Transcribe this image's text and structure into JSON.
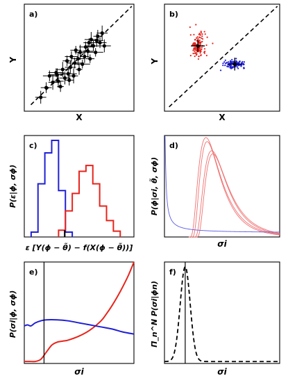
{
  "colors": {
    "red": "#e8231b",
    "blue": "#1f1fd6",
    "black": "#000000",
    "red_thin": "#f07070",
    "blue_thin": "#5a5ae6"
  },
  "chart_data": [
    {
      "panel": "a)",
      "type": "scatter",
      "xlabel": "X",
      "ylabel": "Y",
      "xlim": [
        0,
        10
      ],
      "ylim": [
        0,
        10
      ],
      "identity_line": true,
      "points": [
        [
          1.5,
          1.3
        ],
        [
          2.3,
          3.3
        ],
        [
          2.6,
          2.7
        ],
        [
          2.9,
          3.6
        ],
        [
          3.1,
          2.8
        ],
        [
          3.3,
          2.3
        ],
        [
          3.5,
          3.9
        ],
        [
          3.7,
          3.1
        ],
        [
          3.9,
          4.7
        ],
        [
          4.0,
          3.5
        ],
        [
          4.2,
          4.1
        ],
        [
          4.3,
          5.1
        ],
        [
          4.5,
          3.3
        ],
        [
          4.6,
          4.5
        ],
        [
          4.7,
          5.7
        ],
        [
          4.9,
          4.9
        ],
        [
          5.0,
          3.9
        ],
        [
          5.1,
          5.5
        ],
        [
          5.3,
          4.4
        ],
        [
          5.5,
          5.1
        ],
        [
          5.6,
          6.0
        ],
        [
          5.8,
          5.6
        ],
        [
          6.0,
          4.9
        ],
        [
          6.1,
          6.7
        ],
        [
          6.3,
          6.1
        ],
        [
          6.5,
          5.5
        ],
        [
          6.7,
          7.0
        ],
        [
          6.9,
          6.4
        ],
        [
          7.1,
          7.3
        ],
        [
          7.3,
          6.1
        ],
        [
          2.0,
          2.2
        ],
        [
          3.0,
          3.4
        ],
        [
          4.1,
          2.9
        ],
        [
          5.9,
          6.4
        ],
        [
          6.6,
          6.6
        ]
      ],
      "xerr": [
        0.5,
        0.6,
        0.4,
        0.7,
        0.5,
        0.3,
        0.6,
        0.5,
        0.4,
        0.8,
        0.5,
        0.6,
        0.4,
        0.7,
        0.5,
        0.6,
        0.3,
        0.5,
        0.7,
        0.4,
        0.6,
        0.5,
        0.4,
        0.6,
        0.5,
        0.7,
        0.4,
        0.6,
        0.5,
        0.6,
        0.5,
        0.6,
        0.4,
        0.5,
        0.6
      ],
      "yerr": [
        0.6,
        0.5,
        0.7,
        0.4,
        0.6,
        0.5,
        0.7,
        0.6,
        0.5,
        0.4,
        0.6,
        0.5,
        0.7,
        0.5,
        0.4,
        0.6,
        0.5,
        0.7,
        0.4,
        0.6,
        0.5,
        0.6,
        0.4,
        0.7,
        0.5,
        0.4,
        0.6,
        0.5,
        0.7,
        0.6,
        0.5,
        0.6,
        0.5,
        0.4,
        0.6
      ]
    },
    {
      "panel": "b)",
      "type": "scatter",
      "xlabel": "X",
      "ylabel": "Y",
      "xlim": [
        0,
        10
      ],
      "ylim": [
        0,
        10
      ],
      "identity_line": true,
      "clusters": [
        {
          "color": "red",
          "center": [
            2.9,
            6.1
          ],
          "spread": [
            0.55,
            1.0
          ],
          "count": 130
        },
        {
          "color": "blue",
          "center": [
            6.1,
            4.4
          ],
          "spread": [
            0.75,
            0.28
          ],
          "count": 130
        }
      ],
      "markers": [
        [
          2.9,
          6.1
        ],
        [
          6.1,
          4.4
        ]
      ]
    },
    {
      "panel": "c)",
      "type": "bar",
      "xlabel": "ε [Y(ϕ − θ̃) − f(X(ϕ − θ̃))]",
      "ylabel": "P(ε|ϕ, σϕ)",
      "xlim": [
        0,
        16
      ],
      "ylim": [
        0,
        1.05
      ],
      "series": [
        {
          "color": "blue",
          "bin_edges": [
            1,
            2,
            3,
            4,
            5,
            6,
            7
          ],
          "values": [
            0.05,
            0.55,
            0.87,
            1.0,
            0.48,
            0.05
          ]
        },
        {
          "color": "red",
          "bin_edges": [
            5,
            6,
            7,
            8,
            9,
            10,
            11,
            12,
            13,
            14
          ],
          "values": [
            0.07,
            0.27,
            0.45,
            0.68,
            0.74,
            0.55,
            0.32,
            0.17,
            0.06
          ]
        }
      ],
      "marker_x": 5.9
    },
    {
      "panel": "d)",
      "type": "line",
      "xlabel": "σi",
      "ylabel": "P(ϕ|σi, θ̃, σϕ)",
      "xlim": [
        0,
        10
      ],
      "ylim": [
        0,
        1
      ],
      "series": [
        {
          "color": "red",
          "kind": "upper",
          "peak_x": 3.6,
          "peak_y": 0.98
        },
        {
          "color": "red",
          "kind": "lower",
          "peak_x": 4.1,
          "peak_y": 0.85
        },
        {
          "color": "blue",
          "kind": "decay"
        }
      ]
    },
    {
      "panel": "e)",
      "type": "line",
      "xlabel": "σi",
      "ylabel": "P(σi|ϕ, σϕ)",
      "xlim": [
        0,
        10
      ],
      "ylim": [
        0,
        1
      ],
      "vline_x": 1.8,
      "series": [
        {
          "color": "red",
          "x": [
            0,
            0.5,
            1,
            1.5,
            2,
            2.5,
            3,
            3.5,
            4,
            5,
            6,
            7,
            7.5,
            8,
            8.5,
            9,
            9.5,
            10
          ],
          "y": [
            0.02,
            0.02,
            0.02,
            0.04,
            0.11,
            0.18,
            0.21,
            0.22,
            0.23,
            0.27,
            0.33,
            0.42,
            0.49,
            0.57,
            0.66,
            0.76,
            0.87,
            1.0
          ]
        },
        {
          "color": "blue",
          "x": [
            0,
            0.3,
            0.6,
            1,
            1.5,
            2,
            3,
            4,
            5,
            6,
            7,
            8,
            9,
            10
          ],
          "y": [
            0.37,
            0.38,
            0.37,
            0.4,
            0.42,
            0.43,
            0.43,
            0.42,
            0.4,
            0.38,
            0.36,
            0.34,
            0.31,
            0.29
          ]
        }
      ]
    },
    {
      "panel": "f)",
      "type": "line",
      "xlabel": "σi",
      "ylabel": "Π_n^N P(σi|ϕn)",
      "xlim": [
        0,
        10
      ],
      "ylim": [
        0,
        1.05
      ],
      "vline_x": 1.8,
      "series": [
        {
          "color": "black",
          "style": "dashed",
          "peak_x": 1.8,
          "width": 0.55
        }
      ]
    }
  ]
}
